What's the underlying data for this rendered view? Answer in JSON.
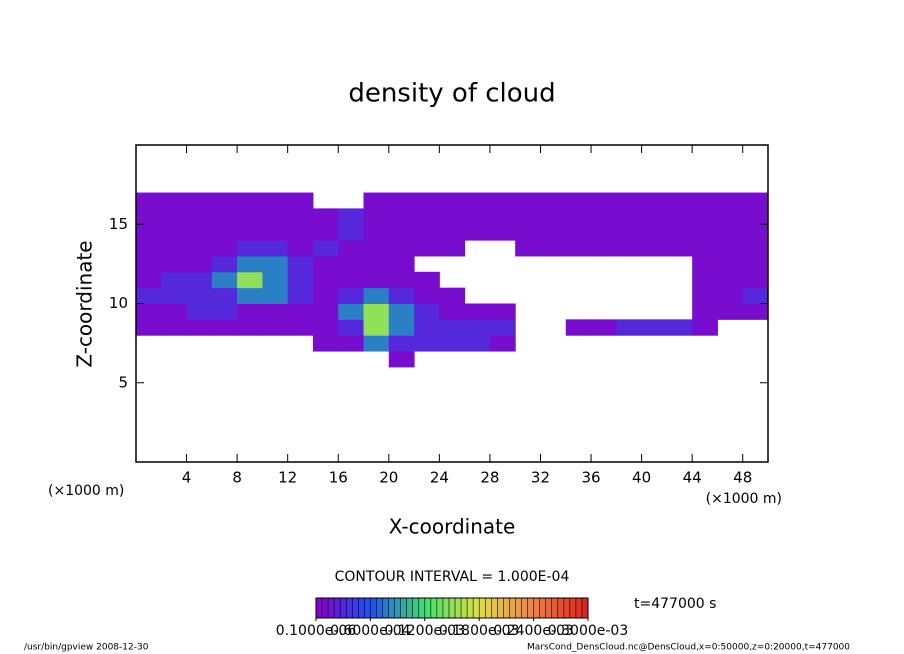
{
  "chart_data": {
    "type": "heatmap",
    "title": "density of cloud",
    "x_label": "X-coordinate",
    "y_label": "Z-coordinate",
    "x_unit": "(×1000 m)",
    "y_unit": "(×1000 m)",
    "xlim": [
      0,
      50
    ],
    "ylim": [
      0,
      20
    ],
    "xticks": [
      4,
      8,
      12,
      16,
      20,
      24,
      28,
      32,
      36,
      40,
      44,
      48
    ],
    "yticks": [
      5,
      10,
      15
    ],
    "x": [
      0,
      2,
      4,
      6,
      8,
      10,
      12,
      14,
      16,
      18,
      20,
      22,
      24,
      26,
      28,
      30,
      32,
      34,
      36,
      38,
      40,
      42,
      44,
      46,
      48,
      50
    ],
    "z": [
      6,
      7,
      8,
      9,
      10,
      11,
      12,
      13,
      14,
      15,
      16,
      17
    ],
    "values": [
      [
        0,
        0,
        0,
        0,
        0,
        0,
        0,
        0,
        0,
        0,
        1e-05,
        0,
        0,
        0,
        0,
        0,
        0,
        0,
        0,
        0,
        0,
        0,
        0,
        0,
        0
      ],
      [
        0,
        0,
        0,
        0,
        0,
        0,
        0,
        1e-05,
        1e-05,
        8e-05,
        3e-05,
        3e-05,
        3e-05,
        3e-05,
        1e-05,
        0,
        0,
        0,
        0,
        0,
        0,
        0,
        0,
        0,
        0
      ],
      [
        1e-05,
        1e-05,
        1e-05,
        1e-05,
        1e-05,
        1e-05,
        1e-05,
        1e-05,
        3e-05,
        0.00015,
        8e-05,
        3e-05,
        3e-05,
        3e-05,
        3e-05,
        0,
        0,
        1e-05,
        1e-05,
        3e-05,
        3e-05,
        3e-05,
        1e-05,
        0,
        0
      ],
      [
        1e-05,
        1e-05,
        3e-05,
        3e-05,
        1e-05,
        1e-05,
        1e-05,
        1e-05,
        8e-05,
        0.00015,
        8e-05,
        3e-05,
        1e-05,
        1e-05,
        1e-05,
        0,
        0,
        0,
        0,
        0,
        0,
        0,
        1e-05,
        1e-05,
        1e-05
      ],
      [
        3e-05,
        3e-05,
        3e-05,
        3e-05,
        8e-05,
        8e-05,
        3e-05,
        1e-05,
        3e-05,
        8e-05,
        3e-05,
        1e-05,
        1e-05,
        0,
        0,
        0,
        0,
        0,
        0,
        0,
        0,
        0,
        1e-05,
        1e-05,
        3e-05
      ],
      [
        1e-05,
        3e-05,
        3e-05,
        8e-05,
        0.00015,
        8e-05,
        3e-05,
        1e-05,
        1e-05,
        1e-05,
        1e-05,
        1e-05,
        0,
        0,
        0,
        0,
        0,
        0,
        0,
        0,
        0,
        0,
        1e-05,
        1e-05,
        1e-05
      ],
      [
        1e-05,
        1e-05,
        1e-05,
        3e-05,
        8e-05,
        8e-05,
        3e-05,
        1e-05,
        1e-05,
        1e-05,
        1e-05,
        0,
        0,
        0,
        0,
        0,
        0,
        0,
        0,
        0,
        0,
        0,
        1e-05,
        1e-05,
        1e-05
      ],
      [
        1e-05,
        1e-05,
        1e-05,
        1e-05,
        3e-05,
        3e-05,
        1e-05,
        3e-05,
        1e-05,
        1e-05,
        1e-05,
        1e-05,
        1e-05,
        0,
        0,
        1e-05,
        1e-05,
        1e-05,
        1e-05,
        1e-05,
        1e-05,
        1e-05,
        1e-05,
        1e-05,
        1e-05
      ],
      [
        1e-05,
        1e-05,
        1e-05,
        1e-05,
        1e-05,
        1e-05,
        1e-05,
        1e-05,
        3e-05,
        1e-05,
        1e-05,
        1e-05,
        1e-05,
        1e-05,
        1e-05,
        1e-05,
        1e-05,
        1e-05,
        1e-05,
        1e-05,
        1e-05,
        1e-05,
        1e-05,
        1e-05,
        1e-05
      ],
      [
        1e-05,
        1e-05,
        1e-05,
        1e-05,
        1e-05,
        1e-05,
        1e-05,
        1e-05,
        3e-05,
        1e-05,
        1e-05,
        1e-05,
        1e-05,
        1e-05,
        1e-05,
        1e-05,
        1e-05,
        1e-05,
        1e-05,
        1e-05,
        1e-05,
        1e-05,
        1e-05,
        1e-05,
        1e-05
      ],
      [
        1e-05,
        1e-05,
        1e-05,
        1e-05,
        1e-05,
        1e-05,
        1e-05,
        0,
        0,
        1e-05,
        1e-05,
        1e-05,
        1e-05,
        1e-05,
        1e-05,
        1e-05,
        1e-05,
        1e-05,
        1e-05,
        1e-05,
        1e-05,
        1e-05,
        1e-05,
        1e-05,
        1e-05
      ]
    ],
    "contour_note": "CONTOUR INTERVAL = 1.000E-04",
    "time_label": "t=477000 s",
    "colorbar": {
      "ticks": [
        {
          "value": 1e-07,
          "label": "0.1000e-06"
        },
        {
          "value": 6e-05,
          "label": "0.6000e-04"
        },
        {
          "value": 0.00012,
          "label": "0.1200e-03"
        },
        {
          "value": 0.00018,
          "label": "0.1800e-03"
        },
        {
          "value": 0.00024,
          "label": "0.2400e-03"
        },
        {
          "value": 0.0003,
          "label": "0.3000e-03"
        }
      ],
      "colors": [
        "#8a00c8",
        "#2050f0",
        "#40e070",
        "#e0e040",
        "#f08040",
        "#e02020"
      ]
    },
    "footer_left": "/usr/bin/gpview  2008-12-30",
    "footer_right": "MarsCond_DensCloud.nc@DensCloud,x=0:50000,z=0:20000,t=477000"
  }
}
